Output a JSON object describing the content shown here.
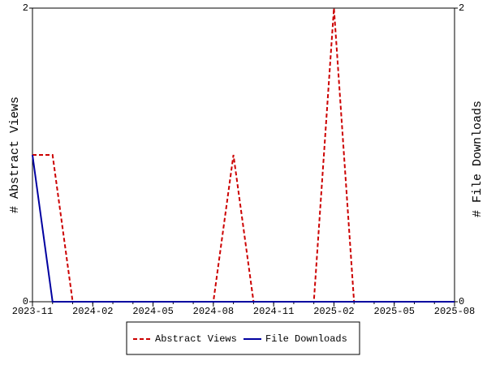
{
  "chart_data": {
    "type": "line",
    "ylabel": "# Abstract Views",
    "y2label": "# File Downloads",
    "x": [
      "2023-11",
      "2023-12",
      "2024-01",
      "2024-02",
      "2024-03",
      "2024-04",
      "2024-05",
      "2024-06",
      "2024-07",
      "2024-08",
      "2024-09",
      "2024-10",
      "2024-11",
      "2024-12",
      "2025-01",
      "2025-02",
      "2025-03",
      "2025-04",
      "2025-05",
      "2025-06",
      "2025-07",
      "2025-08"
    ],
    "xlim": [
      "2023-11",
      "2025-08"
    ],
    "xticks": [
      "2023-11",
      "2024-02",
      "2024-05",
      "2024-08",
      "2024-11",
      "2025-02",
      "2025-05",
      "2025-08"
    ],
    "ylim": [
      0,
      2
    ],
    "yticks": [
      0,
      2
    ],
    "y2lim": [
      0,
      2
    ],
    "y2ticks": [
      0,
      2
    ],
    "series": [
      {
        "name": "Abstract Views",
        "color": "#cc0000",
        "dashed": true,
        "values": [
          1,
          1,
          0,
          0,
          0,
          0,
          0,
          0,
          0,
          0,
          1,
          0,
          0,
          0,
          0,
          2,
          0,
          0,
          0,
          0,
          0,
          0
        ]
      },
      {
        "name": "File Downloads",
        "color": "#0000a0",
        "axis": "y2",
        "values": [
          1,
          0,
          0,
          0,
          0,
          0,
          0,
          0,
          0,
          0,
          0,
          0,
          0,
          0,
          0,
          0,
          0,
          0,
          0,
          0,
          0,
          0
        ]
      }
    ],
    "legend": "bottom"
  }
}
